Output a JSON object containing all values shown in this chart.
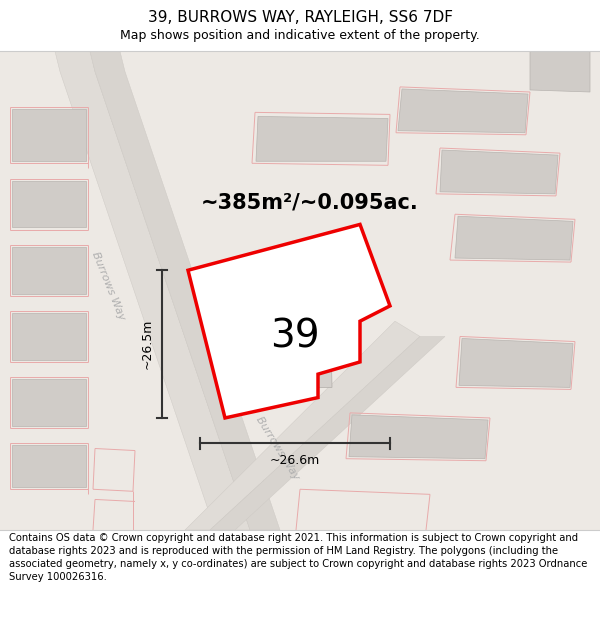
{
  "title": "39, BURROWS WAY, RAYLEIGH, SS6 7DF",
  "subtitle": "Map shows position and indicative extent of the property.",
  "area_text": "~385m²/~0.095ac.",
  "number_label": "39",
  "dim_vertical": "~26.5m",
  "dim_horizontal": "~26.6m",
  "road_label": "Burrows Way",
  "footer": "Contains OS data © Crown copyright and database right 2021. This information is subject to Crown copyright and database rights 2023 and is reproduced with the permission of HM Land Registry. The polygons (including the associated geometry, namely x, y co-ordinates) are subject to Crown copyright and database rights 2023 Ordnance Survey 100026316.",
  "bg_color": "#ede9e4",
  "property_fill": "#ffffff",
  "property_edge": "#ee0000",
  "building_fill": "#d0ccc8",
  "building_edge": "#b8b4b0",
  "pink_color": "#e8aaaa",
  "title_fontsize": 11,
  "subtitle_fontsize": 9,
  "footer_fontsize": 7.2,
  "area_fontsize": 15,
  "number_fontsize": 28,
  "dim_fontsize": 9,
  "road_label_fontsize": 8
}
